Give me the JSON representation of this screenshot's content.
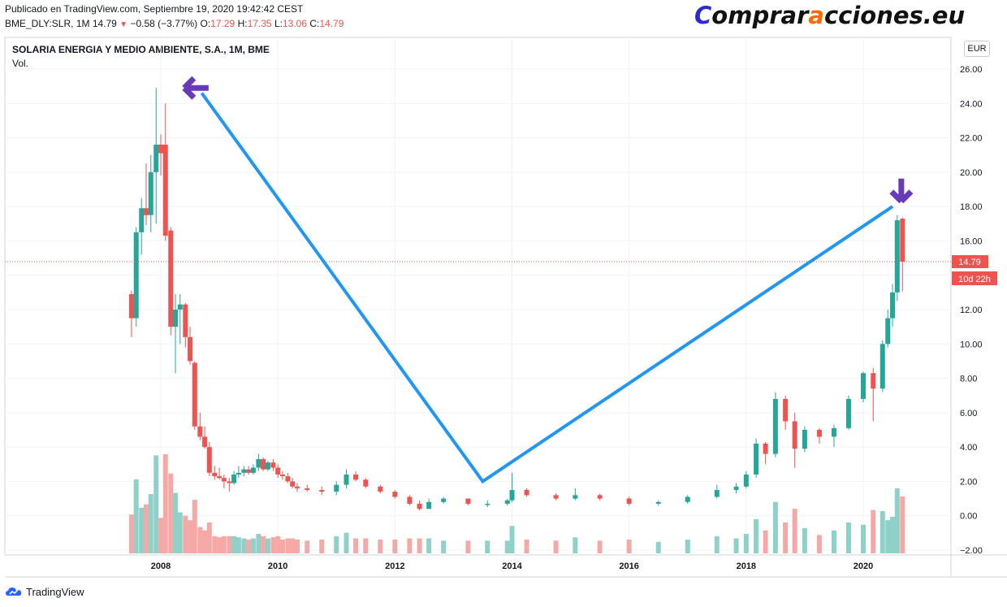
{
  "header": {
    "published": "Publicado en TradingView.com, Septiembre 19, 2020 19:42:42 CEST",
    "ticker": "BME_DLY:SLR, 1M",
    "last": "14.79",
    "change": "−0.58 (−3.77%)",
    "open_label": "O:",
    "open": "17.29",
    "high_label": "H:",
    "high": "17.35",
    "low_label": "L:",
    "low": "13.06",
    "close_label": "C:",
    "close": "14.79"
  },
  "brand": {
    "part1": "C",
    "part2": "omprar",
    "part3": "a",
    "part4": "cciones.eu"
  },
  "legend": {
    "symbol": "SOLARIA ENERGIA Y MEDIO AMBIENTE, S.A., 1M, BME",
    "volume": "Vol."
  },
  "currency": "EUR",
  "price_badge": "14.79",
  "countdown_badge": "10d 22h",
  "footer": {
    "logo_text": "TradingView"
  },
  "colors": {
    "up": "#26a69a",
    "down": "#ef5350",
    "trendline": "#2196f3",
    "arrow": "#673ab7",
    "up_vol": "#8fd1c8",
    "down_vol": "#f5a9a7"
  },
  "chart_data": {
    "type": "candlestick",
    "title": "SOLARIA ENERGIA Y MEDIO AMBIENTE, S.A., 1M, BME",
    "y_ticks": [
      "26.00",
      "24.00",
      "22.00",
      "20.00",
      "18.00",
      "16.00",
      "14.00",
      "12.00",
      "10.00",
      "8.00",
      "6.00",
      "4.00",
      "2.00",
      "0.00",
      "−2.00"
    ],
    "x_ticks": [
      "2008",
      "2010",
      "2012",
      "2014",
      "2016",
      "2018",
      "2020"
    ],
    "ylim": [
      -2,
      26
    ],
    "last_price": 14.79,
    "grid": true,
    "ohlc_monthly_close_approx": [
      {
        "t": 2007.5,
        "o": 12.9,
        "h": 13.1,
        "l": 10.4,
        "c": 11.5
      },
      {
        "t": 2007.58,
        "o": 11.5,
        "h": 16.8,
        "l": 11.0,
        "c": 16.5
      },
      {
        "t": 2007.67,
        "o": 16.5,
        "h": 18.5,
        "l": 15.2,
        "c": 17.9
      },
      {
        "t": 2007.75,
        "o": 17.9,
        "h": 20.5,
        "l": 16.9,
        "c": 17.5
      },
      {
        "t": 2007.83,
        "o": 17.5,
        "h": 21.0,
        "l": 16.5,
        "c": 20.0
      },
      {
        "t": 2007.92,
        "o": 20.0,
        "h": 24.9,
        "l": 17.0,
        "c": 21.6
      },
      {
        "t": 2008.0,
        "o": 21.6,
        "h": 22.2,
        "l": 19.8,
        "c": 21.1
      },
      {
        "t": 2008.08,
        "o": 21.6,
        "h": 24.0,
        "l": 16.0,
        "c": 16.3
      },
      {
        "t": 2008.17,
        "o": 16.6,
        "h": 16.8,
        "l": 10.5,
        "c": 11.0
      },
      {
        "t": 2008.25,
        "o": 11.0,
        "h": 12.9,
        "l": 8.3,
        "c": 12.0
      },
      {
        "t": 2008.33,
        "o": 12.0,
        "h": 12.9,
        "l": 10.0,
        "c": 12.3
      },
      {
        "t": 2008.42,
        "o": 12.3,
        "h": 12.4,
        "l": 9.8,
        "c": 10.4
      },
      {
        "t": 2008.5,
        "o": 10.4,
        "h": 11.0,
        "l": 8.8,
        "c": 9.0
      },
      {
        "t": 2008.58,
        "o": 8.9,
        "h": 9.0,
        "l": 5.0,
        "c": 5.2
      },
      {
        "t": 2008.67,
        "o": 5.2,
        "h": 6.0,
        "l": 4.4,
        "c": 4.6
      },
      {
        "t": 2008.75,
        "o": 4.6,
        "h": 5.2,
        "l": 3.9,
        "c": 4.0
      },
      {
        "t": 2008.83,
        "o": 4.0,
        "h": 4.3,
        "l": 2.3,
        "c": 2.5
      },
      {
        "t": 2008.92,
        "o": 2.5,
        "h": 2.9,
        "l": 2.1,
        "c": 2.3
      },
      {
        "t": 2009.0,
        "o": 2.3,
        "h": 2.8,
        "l": 2.1,
        "c": 2.2
      },
      {
        "t": 2009.08,
        "o": 2.2,
        "h": 2.4,
        "l": 1.6,
        "c": 2.0
      },
      {
        "t": 2009.17,
        "o": 2.0,
        "h": 2.2,
        "l": 1.4,
        "c": 1.9
      },
      {
        "t": 2009.25,
        "o": 1.9,
        "h": 2.6,
        "l": 1.8,
        "c": 2.4
      },
      {
        "t": 2009.33,
        "o": 2.4,
        "h": 2.9,
        "l": 2.2,
        "c": 2.5
      },
      {
        "t": 2009.42,
        "o": 2.5,
        "h": 2.9,
        "l": 2.3,
        "c": 2.7
      },
      {
        "t": 2009.5,
        "o": 2.7,
        "h": 2.9,
        "l": 2.4,
        "c": 2.5
      },
      {
        "t": 2009.58,
        "o": 2.5,
        "h": 3.0,
        "l": 2.4,
        "c": 2.8
      },
      {
        "t": 2009.67,
        "o": 2.8,
        "h": 3.6,
        "l": 2.6,
        "c": 3.3
      },
      {
        "t": 2009.75,
        "o": 3.3,
        "h": 3.4,
        "l": 2.6,
        "c": 2.7
      },
      {
        "t": 2009.83,
        "o": 2.7,
        "h": 3.2,
        "l": 2.6,
        "c": 3.1
      },
      {
        "t": 2009.92,
        "o": 3.1,
        "h": 3.3,
        "l": 2.6,
        "c": 2.8
      },
      {
        "t": 2010.0,
        "o": 2.8,
        "h": 3.0,
        "l": 2.2,
        "c": 2.4
      },
      {
        "t": 2010.08,
        "o": 2.4,
        "h": 2.6,
        "l": 2.1,
        "c": 2.3
      },
      {
        "t": 2010.17,
        "o": 2.3,
        "h": 2.5,
        "l": 1.9,
        "c": 2.0
      },
      {
        "t": 2010.25,
        "o": 2.0,
        "h": 2.2,
        "l": 1.6,
        "c": 1.7
      },
      {
        "t": 2010.33,
        "o": 1.7,
        "h": 1.9,
        "l": 1.4,
        "c": 1.6
      },
      {
        "t": 2010.5,
        "o": 1.6,
        "h": 1.8,
        "l": 1.4,
        "c": 1.5
      },
      {
        "t": 2010.75,
        "o": 1.5,
        "h": 1.7,
        "l": 1.2,
        "c": 1.4
      },
      {
        "t": 2011.0,
        "o": 1.4,
        "h": 2.0,
        "l": 1.2,
        "c": 1.8
      },
      {
        "t": 2011.17,
        "o": 1.8,
        "h": 2.7,
        "l": 1.6,
        "c": 2.4
      },
      {
        "t": 2011.33,
        "o": 2.4,
        "h": 2.6,
        "l": 2.0,
        "c": 2.1
      },
      {
        "t": 2011.5,
        "o": 2.1,
        "h": 2.2,
        "l": 1.6,
        "c": 1.7
      },
      {
        "t": 2011.75,
        "o": 1.7,
        "h": 1.8,
        "l": 1.3,
        "c": 1.4
      },
      {
        "t": 2012.0,
        "o": 1.4,
        "h": 1.5,
        "l": 1.0,
        "c": 1.1
      },
      {
        "t": 2012.25,
        "o": 1.1,
        "h": 1.2,
        "l": 0.6,
        "c": 0.7
      },
      {
        "t": 2012.42,
        "o": 0.7,
        "h": 0.9,
        "l": 0.3,
        "c": 0.4
      },
      {
        "t": 2012.58,
        "o": 0.4,
        "h": 1.0,
        "l": 0.4,
        "c": 0.8
      },
      {
        "t": 2012.83,
        "o": 0.8,
        "h": 1.1,
        "l": 0.7,
        "c": 1.0
      },
      {
        "t": 2013.25,
        "o": 1.0,
        "h": 1.0,
        "l": 0.6,
        "c": 0.7
      },
      {
        "t": 2013.58,
        "o": 0.7,
        "h": 0.9,
        "l": 0.5,
        "c": 0.7
      },
      {
        "t": 2013.92,
        "o": 0.7,
        "h": 1.0,
        "l": 0.6,
        "c": 0.9
      },
      {
        "t": 2014.0,
        "o": 0.9,
        "h": 2.5,
        "l": 0.8,
        "c": 1.5
      },
      {
        "t": 2014.25,
        "o": 1.5,
        "h": 1.6,
        "l": 1.1,
        "c": 1.2
      },
      {
        "t": 2014.75,
        "o": 1.2,
        "h": 1.3,
        "l": 0.9,
        "c": 1.0
      },
      {
        "t": 2015.08,
        "o": 1.0,
        "h": 1.6,
        "l": 0.9,
        "c": 1.2
      },
      {
        "t": 2015.5,
        "o": 1.2,
        "h": 1.3,
        "l": 0.9,
        "c": 1.0
      },
      {
        "t": 2016.0,
        "o": 1.0,
        "h": 1.1,
        "l": 0.6,
        "c": 0.7
      },
      {
        "t": 2016.5,
        "o": 0.7,
        "h": 0.9,
        "l": 0.6,
        "c": 0.8
      },
      {
        "t": 2017.0,
        "o": 0.8,
        "h": 1.2,
        "l": 0.7,
        "c": 1.1
      },
      {
        "t": 2017.5,
        "o": 1.1,
        "h": 1.8,
        "l": 1.0,
        "c": 1.5
      },
      {
        "t": 2017.83,
        "o": 1.5,
        "h": 1.9,
        "l": 1.3,
        "c": 1.7
      },
      {
        "t": 2018.0,
        "o": 1.7,
        "h": 2.6,
        "l": 1.6,
        "c": 2.4
      },
      {
        "t": 2018.17,
        "o": 2.4,
        "h": 4.5,
        "l": 2.2,
        "c": 4.2
      },
      {
        "t": 2018.33,
        "o": 4.2,
        "h": 4.3,
        "l": 3.0,
        "c": 3.6
      },
      {
        "t": 2018.5,
        "o": 3.6,
        "h": 7.2,
        "l": 3.4,
        "c": 6.8
      },
      {
        "t": 2018.67,
        "o": 6.8,
        "h": 7.0,
        "l": 5.0,
        "c": 5.5
      },
      {
        "t": 2018.83,
        "o": 5.5,
        "h": 6.0,
        "l": 2.8,
        "c": 3.9
      },
      {
        "t": 2019.0,
        "o": 3.9,
        "h": 5.2,
        "l": 3.7,
        "c": 5.0
      },
      {
        "t": 2019.25,
        "o": 5.0,
        "h": 5.1,
        "l": 4.2,
        "c": 4.6
      },
      {
        "t": 2019.5,
        "o": 4.6,
        "h": 5.3,
        "l": 4.0,
        "c": 5.1
      },
      {
        "t": 2019.75,
        "o": 5.1,
        "h": 7.0,
        "l": 5.0,
        "c": 6.8
      },
      {
        "t": 2020.0,
        "o": 6.8,
        "h": 8.4,
        "l": 6.6,
        "c": 8.3
      },
      {
        "t": 2020.17,
        "o": 8.3,
        "h": 8.6,
        "l": 5.5,
        "c": 7.4
      },
      {
        "t": 2020.33,
        "o": 7.4,
        "h": 10.2,
        "l": 7.2,
        "c": 10.0
      },
      {
        "t": 2020.42,
        "o": 10.0,
        "h": 12.0,
        "l": 9.8,
        "c": 11.5
      },
      {
        "t": 2020.5,
        "o": 11.5,
        "h": 13.5,
        "l": 11.0,
        "c": 13.0
      },
      {
        "t": 2020.58,
        "o": 13.0,
        "h": 17.5,
        "l": 12.5,
        "c": 17.2
      },
      {
        "t": 2020.67,
        "o": 17.29,
        "h": 17.35,
        "l": 13.06,
        "c": 14.79
      }
    ],
    "annotations": [
      {
        "type": "trendline",
        "points": [
          [
            2008.7,
            24.6
          ],
          [
            2013.5,
            2.0
          ],
          [
            2020.5,
            18.0
          ]
        ]
      },
      {
        "type": "arrow-left",
        "at": [
          2008.4,
          24.9
        ]
      },
      {
        "type": "arrow-down",
        "at": [
          2020.65,
          18.3
        ]
      }
    ]
  }
}
